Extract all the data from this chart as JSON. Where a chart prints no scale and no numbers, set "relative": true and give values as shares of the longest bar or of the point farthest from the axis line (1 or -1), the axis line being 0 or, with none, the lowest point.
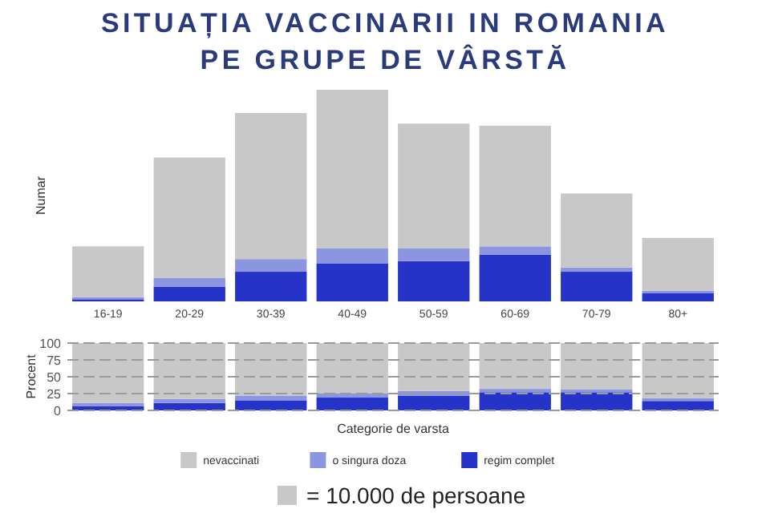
{
  "chart_data": [
    {
      "type": "bar",
      "title": "SITUAȚIA VACCINARII IN ROMANIA PE GRUPE DE VÂRSTĂ",
      "ylabel": "Numar",
      "relative": true,
      "stacked": true,
      "tick_labels": "x",
      "legend": false,
      "categories": [
        "16-19",
        "20-29",
        "30-39",
        "40-49",
        "50-59",
        "60-69",
        "70-79",
        "80+"
      ],
      "series": [
        {
          "color": "#2633c8",
          "values": [
            0.01,
            0.07,
            0.14,
            0.18,
            0.19,
            0.22,
            0.14,
            0.04
          ]
        },
        {
          "color": "#8c96e0",
          "values": [
            0.01,
            0.04,
            0.06,
            0.07,
            0.06,
            0.04,
            0.02,
            0.01
          ]
        },
        {
          "color": "#c8c8c8",
          "values": [
            0.24,
            0.57,
            0.69,
            0.75,
            0.59,
            0.57,
            0.35,
            0.25
          ]
        }
      ]
    },
    {
      "type": "bar",
      "xlabel": "Categorie de varsta",
      "ylabel": "Procent",
      "stacked": true,
      "tick_labels": "y",
      "grid": "y",
      "legend": "bottom",
      "ylim": [
        0,
        100
      ],
      "yticks": [
        0,
        25,
        50,
        75,
        100
      ],
      "categories": [
        null,
        null,
        null,
        null,
        null,
        null,
        null,
        null
      ],
      "series": [
        {
          "name": "regim complet",
          "color": "#2633c8",
          "values": [
            6,
            11,
            15,
            19,
            22,
            27,
            27,
            14
          ]
        },
        {
          "name": "o singura doza",
          "color": "#8c96e0",
          "values": [
            5,
            6,
            7,
            6,
            7,
            5,
            4,
            4
          ]
        },
        {
          "name": "nevaccinati",
          "color": "#c8c8c8",
          "values": [
            89,
            83,
            78,
            75,
            71,
            68,
            69,
            82
          ]
        }
      ],
      "annotations": [
        "= 10.000 de persoane"
      ]
    }
  ]
}
